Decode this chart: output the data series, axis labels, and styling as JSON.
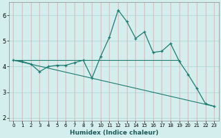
{
  "xlabel": "Humidex (Indice chaleur)",
  "bg_color": "#d4eeee",
  "line_color": "#1a7a6e",
  "grid_color": "#aad4d4",
  "grid_color2": "#eaa0a0",
  "xlim": [
    -0.5,
    23.5
  ],
  "ylim": [
    1.9,
    6.5
  ],
  "yticks": [
    2,
    3,
    4,
    5,
    6
  ],
  "xticks": [
    0,
    1,
    2,
    3,
    4,
    5,
    6,
    7,
    8,
    9,
    10,
    11,
    12,
    13,
    14,
    15,
    16,
    17,
    18,
    19,
    20,
    21,
    22,
    23
  ],
  "line1_x": [
    0,
    1,
    2,
    3,
    4,
    5,
    6,
    7,
    8,
    9,
    10,
    11,
    12,
    13,
    14,
    15,
    16,
    17,
    18,
    19,
    20,
    21,
    22,
    23
  ],
  "line1_y": [
    4.25,
    4.2,
    4.1,
    3.8,
    4.0,
    4.05,
    4.05,
    4.15,
    4.25,
    3.55,
    4.4,
    5.15,
    6.2,
    5.75,
    5.1,
    5.35,
    4.55,
    4.6,
    4.9,
    4.2,
    3.7,
    3.15,
    2.55,
    2.45
  ],
  "line2_x": [
    0,
    19
  ],
  "line2_y": [
    4.25,
    4.25
  ],
  "line3_x": [
    0,
    23
  ],
  "line3_y": [
    4.25,
    2.45
  ]
}
